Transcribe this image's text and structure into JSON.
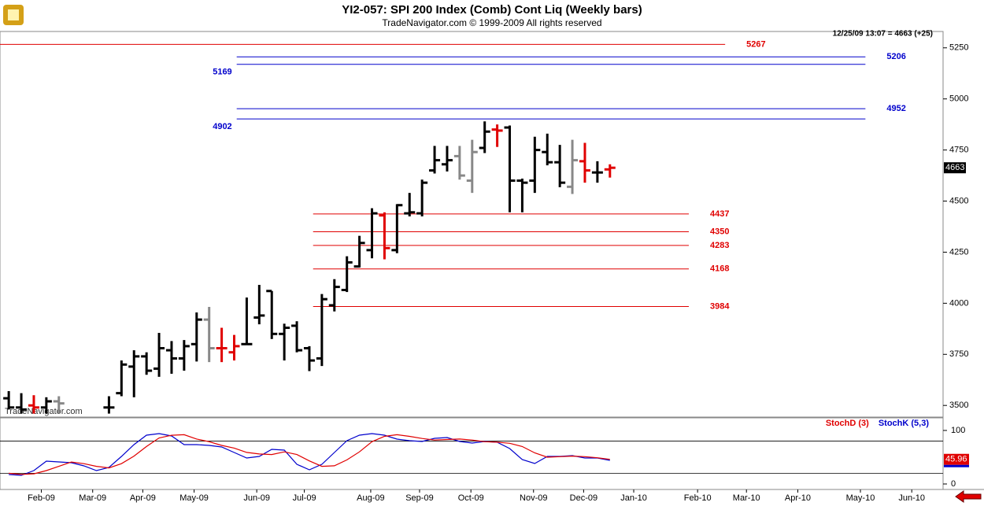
{
  "chart_data": [
    {
      "type": "ohlc",
      "title": "YI2-057:  SPI 200 Index (Comb) Cont Liq  (Weekly bars)",
      "subtitle": "TradeNavigator.com © 1999-2009 All rights reserved",
      "watermark": "TradeNavigator.com",
      "status": "12/25/09 13:07 = 4663 (+25)",
      "x": [
        0,
        1,
        2,
        3,
        4,
        8,
        9,
        10,
        11,
        12,
        13,
        14,
        15,
        16,
        17,
        18,
        19,
        20,
        21,
        22,
        23,
        24,
        25,
        26,
        27,
        28,
        29,
        30,
        31,
        32,
        33,
        34,
        35,
        36,
        37,
        38,
        39,
        40,
        41,
        42,
        43,
        44,
        45,
        46,
        47,
        48
      ],
      "open": [
        3535,
        3490,
        3500,
        3490,
        3520,
        3490,
        3560,
        3690,
        3740,
        3680,
        3770,
        3730,
        3800,
        3920,
        3780,
        3760,
        3800,
        3930,
        4060,
        3850,
        3890,
        3780,
        3730,
        3990,
        4065,
        4180,
        4260,
        4430,
        4260,
        4440,
        4440,
        4650,
        4680,
        4720,
        4600,
        4760,
        4850,
        4860,
        4600,
        4600,
        4740,
        4690,
        4570,
        4695,
        4640,
        4655
      ],
      "high": [
        3570,
        3560,
        3550,
        3540,
        3545,
        3545,
        3720,
        3770,
        3760,
        3855,
        3815,
        3820,
        3955,
        3982,
        3880,
        3845,
        4028,
        4090,
        4060,
        3900,
        3912,
        3790,
        4045,
        4118,
        4230,
        4330,
        4465,
        4445,
        4485,
        4540,
        4605,
        4770,
        4770,
        4770,
        4800,
        4890,
        4875,
        4870,
        4610,
        4815,
        4830,
        4775,
        4800,
        4785,
        4695,
        4680
      ],
      "low": [
        3480,
        3460,
        3460,
        3460,
        3460,
        3460,
        3545,
        3540,
        3650,
        3640,
        3655,
        3670,
        3715,
        3712,
        3712,
        3720,
        3797,
        3897,
        3825,
        3720,
        3760,
        3668,
        3693,
        3960,
        4055,
        4175,
        4220,
        4215,
        4245,
        4425,
        4425,
        4635,
        4645,
        4605,
        4540,
        4735,
        4765,
        4445,
        4445,
        4540,
        4675,
        4568,
        4535,
        4590,
        4590,
        4615
      ],
      "close": [
        3490,
        3480,
        3490,
        3520,
        3510,
        3490,
        3700,
        3740,
        3670,
        3780,
        3730,
        3790,
        3920,
        3780,
        3780,
        3790,
        3800,
        3940,
        3850,
        3880,
        3770,
        3720,
        4020,
        4080,
        4200,
        4295,
        4440,
        4270,
        4480,
        4445,
        4590,
        4700,
        4700,
        4625,
        4740,
        4840,
        4845,
        4600,
        4590,
        4750,
        4690,
        4590,
        4700,
        4650,
        4640,
        4663
      ],
      "bar_colors": [
        "#000000",
        "#000000",
        "#e00000",
        "#000000",
        "#888888",
        "#000000",
        "#000000",
        "#000000",
        "#000000",
        "#000000",
        "#000000",
        "#000000",
        "#000000",
        "#888888",
        "#e00000",
        "#e00000",
        "#000000",
        "#000000",
        "#000000",
        "#000000",
        "#000000",
        "#000000",
        "#000000",
        "#000000",
        "#000000",
        "#000000",
        "#000000",
        "#e00000",
        "#000000",
        "#000000",
        "#000000",
        "#000000",
        "#000000",
        "#888888",
        "#888888",
        "#000000",
        "#e00000",
        "#000000",
        "#000000",
        "#000000",
        "#000000",
        "#000000",
        "#888888",
        "#e00000",
        "#000000",
        "#e00000"
      ],
      "levels": [
        {
          "value": 5267,
          "color": "#e00000",
          "label_side": "right"
        },
        {
          "value": 5206,
          "color": "#0000cc",
          "label_side": "right"
        },
        {
          "value": 5169,
          "color": "#0000cc",
          "label_side": "left"
        },
        {
          "value": 4952,
          "color": "#0000cc",
          "label_side": "right"
        },
        {
          "value": 4902,
          "color": "#0000cc",
          "label_side": "left"
        },
        {
          "value": 4437,
          "color": "#e00000",
          "label_side": "right"
        },
        {
          "value": 4350,
          "color": "#e00000",
          "label_side": "right"
        },
        {
          "value": 4283,
          "color": "#e00000",
          "label_side": "right"
        },
        {
          "value": 4168,
          "color": "#e00000",
          "label_side": "right"
        },
        {
          "value": 3984,
          "color": "#e00000",
          "label_side": "right"
        }
      ],
      "xlim": [
        -0.7,
        74.6
      ],
      "ylim": [
        3443,
        5330
      ],
      "yticks": [
        3500,
        3750,
        4000,
        4250,
        4500,
        4750,
        5000,
        5250
      ],
      "xticks": [
        {
          "value": 2.6,
          "label": "Feb-09"
        },
        {
          "value": 6.7,
          "label": "Mar-09"
        },
        {
          "value": 10.7,
          "label": "Apr-09"
        },
        {
          "value": 14.8,
          "label": "May-09"
        },
        {
          "value": 19.8,
          "label": "Jun-09"
        },
        {
          "value": 23.6,
          "label": "Jul-09"
        },
        {
          "value": 28.9,
          "label": "Aug-09"
        },
        {
          "value": 32.8,
          "label": "Sep-09"
        },
        {
          "value": 36.9,
          "label": "Oct-09"
        },
        {
          "value": 41.9,
          "label": "Nov-09"
        },
        {
          "value": 45.9,
          "label": "Dec-09"
        },
        {
          "value": 49.9,
          "label": "Jan-10"
        },
        {
          "value": 55,
          "label": "Feb-10"
        },
        {
          "value": 58.9,
          "label": "Mar-10"
        },
        {
          "value": 63,
          "label": "Apr-10"
        },
        {
          "value": 68,
          "label": "May-10"
        },
        {
          "value": 72.1,
          "label": "Jun-10"
        }
      ]
    },
    {
      "type": "line",
      "x": [
        0,
        1,
        2,
        3,
        4,
        5,
        6,
        7,
        8,
        9,
        10,
        11,
        12,
        13,
        14,
        15,
        16,
        17,
        18,
        19,
        20,
        21,
        22,
        23,
        24,
        25,
        26,
        27,
        28,
        29,
        30,
        31,
        32,
        33,
        34,
        35,
        36,
        37,
        38,
        39,
        40,
        41,
        42,
        43,
        44,
        45,
        46,
        47,
        48
      ],
      "series": [
        {
          "name": "StochD (3)",
          "color": "#e00000",
          "values": [
            20,
            18,
            19,
            25,
            33,
            41,
            38,
            33,
            30,
            38,
            52,
            70,
            86,
            91,
            92,
            84,
            79,
            72,
            67,
            59,
            56,
            55,
            60,
            55,
            43,
            33,
            34,
            45,
            60,
            79,
            89,
            92,
            89,
            85,
            82,
            83,
            84,
            82,
            79,
            78,
            76,
            70,
            58,
            50,
            51,
            52,
            51,
            49,
            45.96
          ]
        },
        {
          "name": "StochK (5,3)",
          "color": "#0000cc",
          "values": [
            17.6,
            16.2,
            25,
            42.6,
            41.2,
            39.7,
            33.8,
            25,
            30.9,
            51.5,
            73.5,
            91.2,
            94.1,
            89.7,
            73.5,
            73.5,
            72,
            69.1,
            58.8,
            48.5,
            51.5,
            64.7,
            63.2,
            36.8,
            26.5,
            36.8,
            58.8,
            80.9,
            91.2,
            94.1,
            91.2,
            83.8,
            80.9,
            79.4,
            85.3,
            86.8,
            79.4,
            76.5,
            79.4,
            77.9,
            66.2,
            45.6,
            38.2,
            51.5,
            51.5,
            52.9,
            48.5,
            48.5,
            44.1
          ]
        }
      ],
      "hlines": [
        80,
        20
      ],
      "ylim": [
        -10.3,
        123.5
      ],
      "yticks": [
        0,
        100
      ]
    }
  ]
}
